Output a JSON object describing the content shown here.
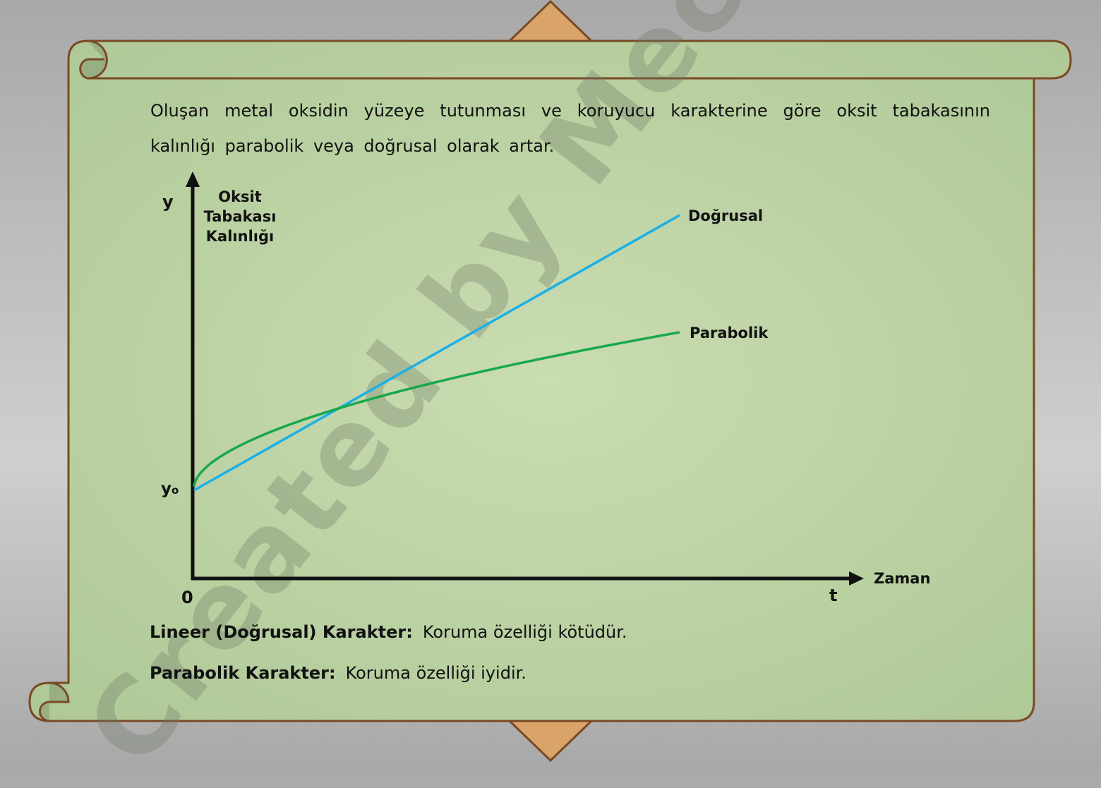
{
  "intro_text": "Oluşan metal oksidin yüzeye tutunması ve koruyucu karakterine göre oksit tabakasının kalınlığı parabolik veya doğrusal olarak artar.",
  "diagram": {
    "y_axis_symbol": "y",
    "y_axis_label_lines": [
      "Oksit",
      "Tabakası",
      "Kalınlığı"
    ],
    "y0_label": "y",
    "y0_subscript": "o",
    "origin_label": "0",
    "x_axis_symbol": "t",
    "x_axis_label": "Zaman",
    "curves": [
      {
        "name": "Doğrusal",
        "shape": "linear",
        "color": "#1ab0e8"
      },
      {
        "name": "Parabolik",
        "shape": "parabolic",
        "color": "#17a84a"
      }
    ]
  },
  "notes": [
    {
      "label": "Lineer (Doğrusal) Karakter:",
      "text": "Koruma özelliği kötüdür."
    },
    {
      "label": "Parabolik Karakter:",
      "text": "Koruma özelliği iyidir."
    }
  ],
  "watermark": "Created by Mech ⚒ Eng ⚒ Caglar",
  "colors": {
    "scroll": "#c2d6a8",
    "border": "#7a4a26",
    "diamond": "#d9a36a"
  }
}
